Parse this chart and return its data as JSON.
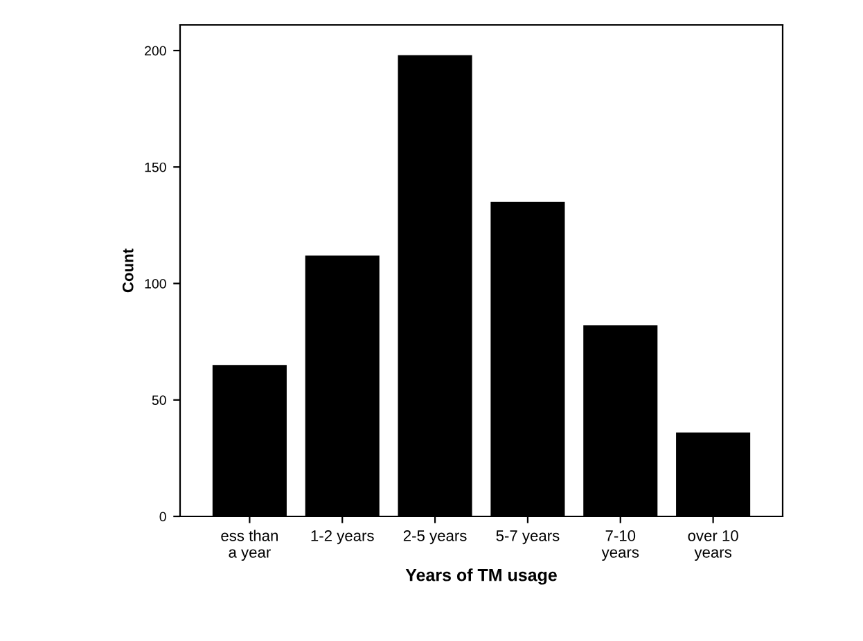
{
  "chart_data": {
    "type": "bar",
    "xlabel": "Years of TM usage",
    "ylabel": "Count",
    "categories": [
      "ess than\na year",
      "1-2 years",
      "2-5 years",
      "5-7 years",
      "7-10\nyears",
      "over 10\nyears"
    ],
    "values": [
      65,
      112,
      198,
      135,
      82,
      36
    ],
    "color": "#000000",
    "ylim": [
      0,
      211
    ],
    "yticks": [
      0,
      50,
      100,
      150,
      200
    ],
    "grid": false
  }
}
